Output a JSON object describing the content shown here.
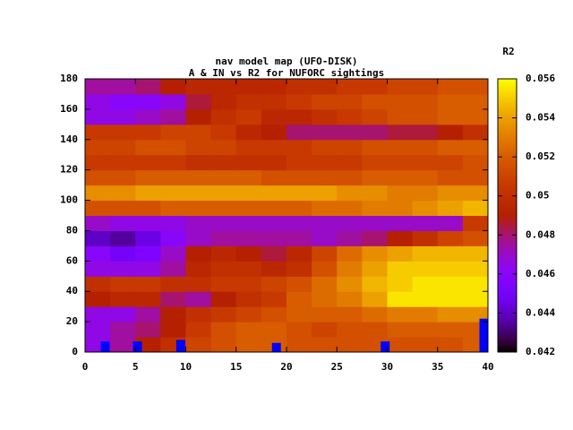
{
  "chart_data": {
    "type": "heatmap",
    "title": "nav model map (UFO-DISK)",
    "subtitle": "A & IN vs R2 for NUFORC sightings",
    "colorbar_label": "R2",
    "x": [
      1.25,
      3.75,
      6.25,
      8.75,
      11.25,
      13.75,
      16.25,
      18.75,
      21.25,
      23.75,
      26.25,
      28.75,
      31.25,
      33.75,
      36.25,
      38.75
    ],
    "y": [
      5,
      15,
      25,
      35,
      45,
      55,
      65,
      75,
      85,
      95,
      105,
      115,
      125,
      135,
      145,
      155,
      165,
      175
    ],
    "z": [
      [
        0.0465,
        0.0475,
        0.049,
        0.05,
        0.051,
        0.0515,
        0.052,
        0.052,
        0.0515,
        0.0515,
        0.0515,
        0.0515,
        0.0515,
        0.0515,
        0.0515,
        0.052
      ],
      [
        0.0465,
        0.0475,
        0.048,
        0.049,
        0.0505,
        0.0515,
        0.052,
        0.052,
        0.0515,
        0.051,
        0.0515,
        0.0515,
        0.052,
        0.052,
        0.052,
        0.052
      ],
      [
        0.0465,
        0.0465,
        0.0475,
        0.049,
        0.05,
        0.0505,
        0.051,
        0.0515,
        0.052,
        0.052,
        0.052,
        0.0525,
        0.053,
        0.053,
        0.0535,
        0.0535
      ],
      [
        0.049,
        0.0495,
        0.0495,
        0.048,
        0.0475,
        0.049,
        0.05,
        0.0505,
        0.052,
        0.0525,
        0.053,
        0.054,
        0.0555,
        0.0555,
        0.0555,
        0.0555
      ],
      [
        0.05,
        0.0505,
        0.0505,
        0.05,
        0.05,
        0.0505,
        0.0505,
        0.051,
        0.0515,
        0.0525,
        0.0535,
        0.0545,
        0.055,
        0.0555,
        0.0555,
        0.0555
      ],
      [
        0.0465,
        0.0465,
        0.0465,
        0.0475,
        0.0495,
        0.05,
        0.05,
        0.0495,
        0.05,
        0.0515,
        0.053,
        0.054,
        0.055,
        0.055,
        0.055,
        0.055
      ],
      [
        0.046,
        0.045,
        0.0455,
        0.047,
        0.049,
        0.0495,
        0.049,
        0.0485,
        0.0495,
        0.051,
        0.0525,
        0.0535,
        0.054,
        0.0545,
        0.0545,
        0.0545
      ],
      [
        0.044,
        0.0435,
        0.0445,
        0.046,
        0.047,
        0.0475,
        0.0475,
        0.0475,
        0.0475,
        0.047,
        0.0475,
        0.048,
        0.049,
        0.05,
        0.051,
        0.0515
      ],
      [
        0.047,
        0.0465,
        0.0465,
        0.0465,
        0.047,
        0.047,
        0.047,
        0.047,
        0.047,
        0.047,
        0.047,
        0.047,
        0.047,
        0.047,
        0.047,
        0.0505
      ],
      [
        0.0515,
        0.0515,
        0.0515,
        0.052,
        0.052,
        0.052,
        0.052,
        0.052,
        0.052,
        0.0525,
        0.0525,
        0.053,
        0.053,
        0.0535,
        0.054,
        0.0545
      ],
      [
        0.0535,
        0.0535,
        0.054,
        0.054,
        0.054,
        0.054,
        0.054,
        0.054,
        0.054,
        0.054,
        0.0535,
        0.0535,
        0.053,
        0.053,
        0.0535,
        0.0535
      ],
      [
        0.0515,
        0.0515,
        0.052,
        0.052,
        0.052,
        0.052,
        0.052,
        0.0515,
        0.0515,
        0.0515,
        0.0515,
        0.052,
        0.052,
        0.052,
        0.0515,
        0.0515
      ],
      [
        0.0505,
        0.0505,
        0.0505,
        0.0505,
        0.05,
        0.05,
        0.05,
        0.05,
        0.0505,
        0.0505,
        0.0505,
        0.051,
        0.051,
        0.051,
        0.051,
        0.0515
      ],
      [
        0.051,
        0.051,
        0.0515,
        0.0515,
        0.051,
        0.051,
        0.0505,
        0.0505,
        0.0505,
        0.051,
        0.051,
        0.0515,
        0.0515,
        0.0515,
        0.052,
        0.052
      ],
      [
        0.0505,
        0.0505,
        0.0505,
        0.051,
        0.051,
        0.0505,
        0.0495,
        0.049,
        0.048,
        0.048,
        0.048,
        0.048,
        0.0485,
        0.0485,
        0.049,
        0.05
      ],
      [
        0.0465,
        0.0465,
        0.047,
        0.0475,
        0.049,
        0.05,
        0.0505,
        0.0495,
        0.0495,
        0.05,
        0.0505,
        0.051,
        0.0515,
        0.0515,
        0.052,
        0.052
      ],
      [
        0.0465,
        0.046,
        0.046,
        0.0465,
        0.0485,
        0.0495,
        0.05,
        0.05,
        0.0505,
        0.051,
        0.051,
        0.0515,
        0.0515,
        0.0515,
        0.052,
        0.052
      ],
      [
        0.0475,
        0.0475,
        0.048,
        0.049,
        0.0495,
        0.0495,
        0.0495,
        0.0495,
        0.05,
        0.05,
        0.0505,
        0.0505,
        0.051,
        0.051,
        0.0515,
        0.0515
      ]
    ],
    "markers": {
      "x": [
        2,
        5.2,
        9.5,
        19,
        29.8,
        39.6
      ],
      "values": [
        7,
        7,
        8,
        6,
        7,
        22
      ],
      "color": "#0000ff"
    },
    "xlim": [
      0,
      40
    ],
    "xticks": [
      0,
      5,
      10,
      15,
      20,
      25,
      30,
      35,
      40
    ],
    "ylim": [
      0,
      180
    ],
    "yticks": [
      0,
      20,
      40,
      60,
      80,
      100,
      120,
      140,
      160,
      180
    ],
    "cblim": [
      0.042,
      0.056
    ],
    "cbticks": [
      0.042,
      0.044,
      0.046,
      0.048,
      0.05,
      0.052,
      0.054,
      0.056
    ]
  }
}
